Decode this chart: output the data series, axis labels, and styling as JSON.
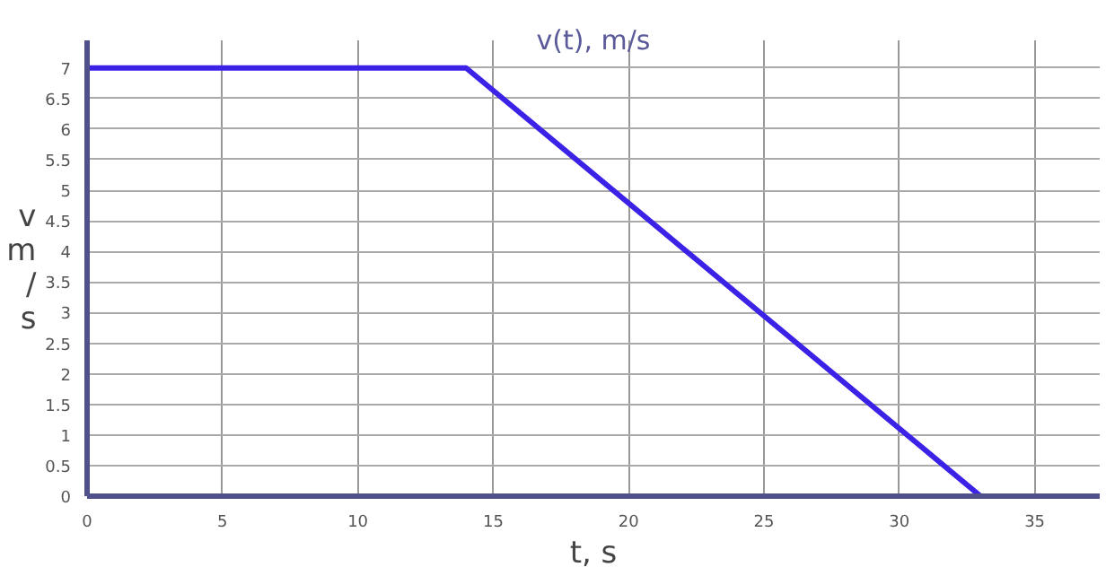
{
  "chart_data": {
    "type": "line",
    "title": "v(t), m/s",
    "xlabel": "t, s",
    "ylabel": "v\nm\n/\ns",
    "x": [
      0,
      14,
      33
    ],
    "series": [
      {
        "color": "#3b22e6",
        "values": [
          7,
          7,
          0
        ]
      }
    ],
    "xlim": [
      0,
      37.4
    ],
    "ylim": [
      0,
      7.45
    ],
    "xticks": [
      0,
      5,
      10,
      15,
      20,
      25,
      30,
      35
    ],
    "yticks": [
      0,
      0.5,
      1,
      1.5,
      2,
      2.5,
      3,
      3.5,
      4,
      4.5,
      5,
      5.5,
      6,
      6.5,
      7
    ],
    "grid": true,
    "line_style": "solid"
  }
}
